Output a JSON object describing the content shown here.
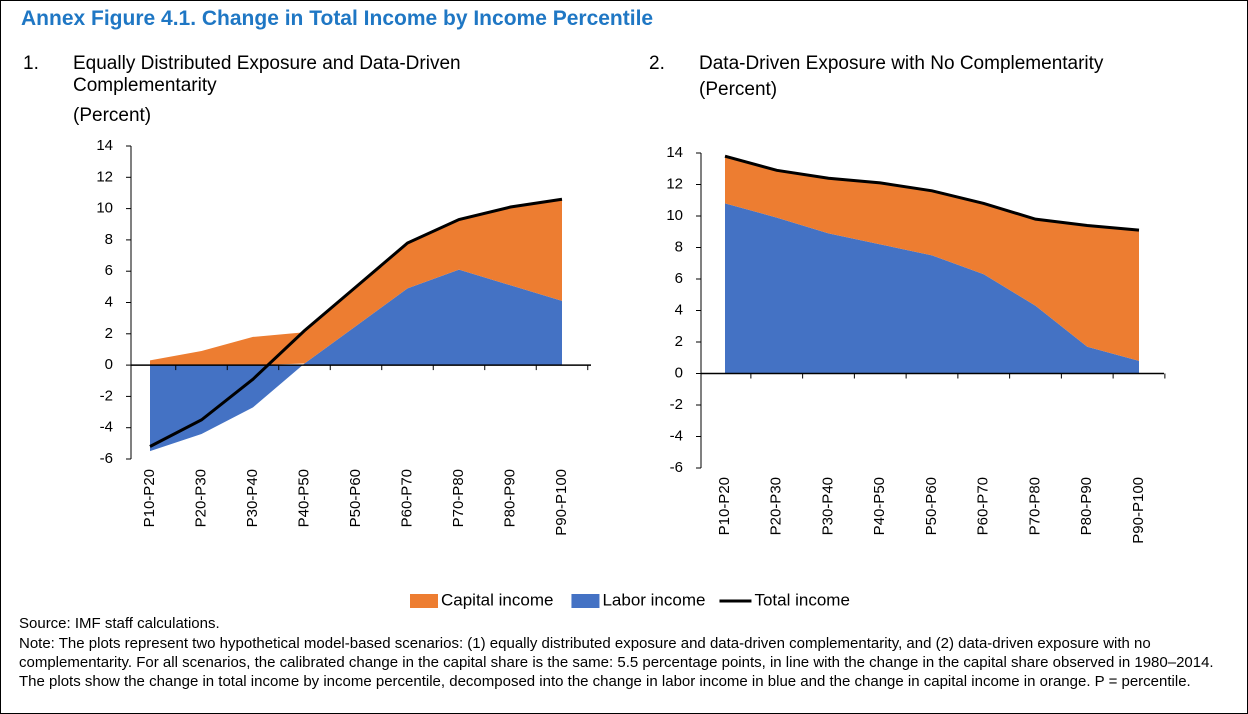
{
  "figure_title": "Annex Figure 4.1. Change in Total Income by Income Percentile",
  "legend": "bottom",
  "source": "Source: IMF staff calculations.",
  "note": "Note: The plots represent two hypothetical model-based scenarios: (1) equally distributed exposure and data-driven complementarity, and (2) data-driven exposure with no complementarity. For all scenarios, the calibrated change in the capital share is the same: 5.5 percentage points, in line with the change in the capital share observed in 1980–2014. The plots show the change in total income by income percentile, decomposed into the change in labor income in blue and the change in capital income in orange. P = percentile.",
  "chart_data": [
    {
      "type": "area",
      "number": "1.",
      "title": "Equally Distributed Exposure and Data-Driven Complementarity",
      "subtitle": "(Percent)",
      "categories": [
        "P10-P20",
        "P20-P30",
        "P30-P40",
        "P40-P50",
        "P50-P60",
        "P60-P70",
        "P70-P80",
        "P80-P90",
        "P90-P100"
      ],
      "ylim": [
        -6,
        14
      ],
      "yticks": [
        -6,
        -4,
        -2,
        0,
        2,
        4,
        6,
        8,
        10,
        12,
        14
      ],
      "grid": false,
      "series": [
        {
          "name": "Labor income",
          "type": "area",
          "color": "#4472c4",
          "values": [
            -5.5,
            -4.4,
            -2.7,
            0.1,
            2.5,
            4.9,
            6.1,
            5.1,
            4.1
          ]
        },
        {
          "name": "Capital income",
          "type": "area",
          "color": "#ed7d31",
          "values": [
            0.3,
            0.9,
            1.8,
            2.0,
            2.5,
            2.9,
            3.2,
            5.0,
            6.5
          ]
        },
        {
          "name": "Total income",
          "type": "line",
          "color": "#000000",
          "values": [
            -5.2,
            -3.5,
            -0.9,
            2.2,
            5.0,
            7.8,
            9.3,
            10.1,
            10.6
          ]
        }
      ]
    },
    {
      "type": "area",
      "number": "2.",
      "title": "Data-Driven Exposure with No Complementarity",
      "subtitle": "(Percent)",
      "categories": [
        "P10-P20",
        "P20-P30",
        "P30-P40",
        "P40-P50",
        "P50-P60",
        "P60-P70",
        "P70-P80",
        "P80-P90",
        "P90-P100"
      ],
      "ylim": [
        -6,
        14
      ],
      "yticks": [
        -6,
        -4,
        -2,
        0,
        2,
        4,
        6,
        8,
        10,
        12,
        14
      ],
      "grid": false,
      "series": [
        {
          "name": "Labor income",
          "type": "area",
          "color": "#4472c4",
          "values": [
            10.8,
            9.9,
            8.9,
            8.2,
            7.5,
            6.3,
            4.3,
            1.7,
            0.8
          ]
        },
        {
          "name": "Capital income",
          "type": "area",
          "color": "#ed7d31",
          "values": [
            3.0,
            3.0,
            3.5,
            3.9,
            4.1,
            4.5,
            5.5,
            7.7,
            8.3
          ]
        },
        {
          "name": "Total income",
          "type": "line",
          "color": "#000000",
          "values": [
            13.8,
            12.9,
            12.4,
            12.1,
            11.6,
            10.8,
            9.8,
            9.4,
            9.1
          ]
        }
      ]
    }
  ]
}
